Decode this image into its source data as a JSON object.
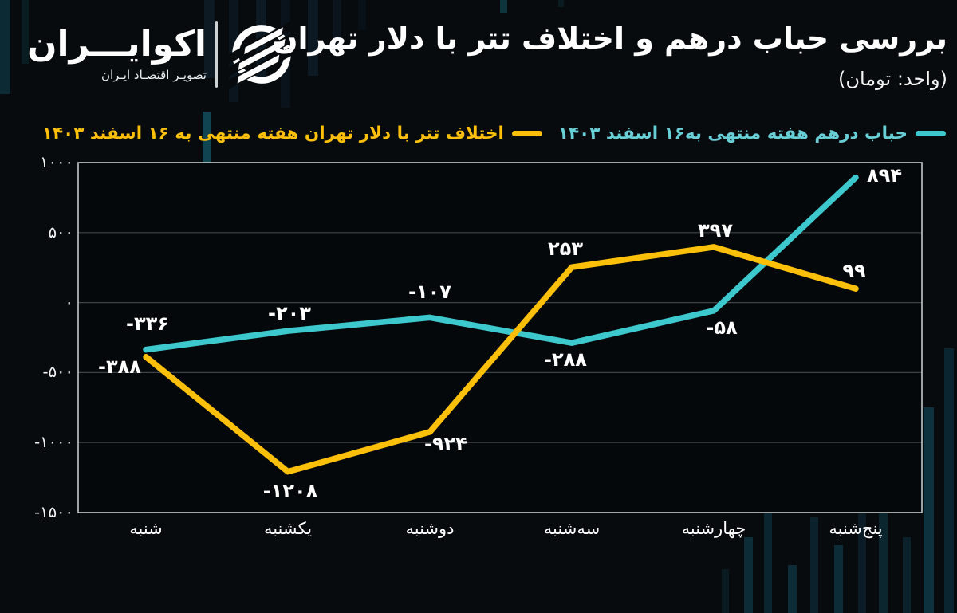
{
  "page": {
    "background": "#070b0d"
  },
  "logo": {
    "brand": "اکوایـــران",
    "tagline": "تصویـر اقتصـاد ایـران"
  },
  "header": {
    "title": "بررسی حباب درهم و اختلاف تتر با دلار تهران",
    "subtitle": "(واحد: تومان)"
  },
  "legend": [
    {
      "label": "حباب درهم هفته منتهی به۱۶ اسفند ۱۴۰۳",
      "swatch_color": "#3cc8cd",
      "text_color": "#68cfd7"
    },
    {
      "label": "اختلاف تتر با دلار تهران هفته منتهی به ۱۶ اسفند ۱۴۰۳",
      "swatch_color": "#fcbf0a",
      "text_color": "#fcbf0a"
    }
  ],
  "chart_data": {
    "type": "line",
    "title": "بررسی حباب درهم و اختلاف تتر با دلار تهران",
    "unit_note": "(واحد: تومان)",
    "categories": [
      "شنبه",
      "یکشنبه",
      "دوشنبه",
      "سه‌شنبه",
      "چهارشنبه",
      "پنج‌شنبه"
    ],
    "series": [
      {
        "name": "حباب درهم هفته منتهی به۱۶ اسفند ۱۴۰۳",
        "color": "#3cc8cd",
        "values": [
          -336,
          -203,
          -107,
          -288,
          -58,
          894
        ],
        "labels": [
          "-۳۳۶",
          "-۲۰۳",
          "-۱۰۷",
          "-۲۸۸",
          "-۵۸",
          "۸۹۴"
        ]
      },
      {
        "name": "اختلاف تتر با دلار تهران هفته منتهی به ۱۶ اسفند ۱۴۰۳",
        "color": "#fcbf0a",
        "values": [
          -388,
          -1208,
          -924,
          253,
          397,
          99
        ],
        "labels": [
          "-۳۸۸",
          "-۱۲۰۸",
          "-۹۲۴",
          "۲۵۳",
          "۳۹۷",
          "۹۹"
        ]
      }
    ],
    "y_axis": {
      "min": -1500,
      "max": 1000,
      "ticks": [
        1000,
        500,
        0,
        -500,
        -1000,
        -1500
      ],
      "tick_labels": [
        "۱۰۰۰",
        "۵۰۰",
        "۰",
        "-۵۰۰",
        "-۱۰۰۰",
        "-۱۵۰۰"
      ]
    },
    "grid": true,
    "legend_position": "top"
  }
}
